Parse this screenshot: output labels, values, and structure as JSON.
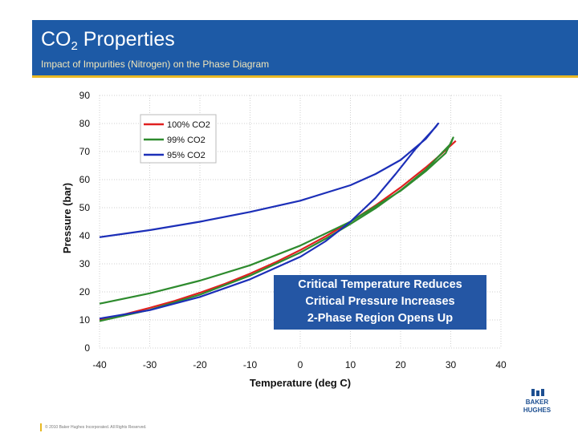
{
  "header": {
    "title_main": "CO",
    "title_sub": "2",
    "title_rest": " Properties",
    "subtitle": "Impact of Impurities (Nitrogen) on the Phase Diagram"
  },
  "chart_data": {
    "type": "line",
    "title": "",
    "xlabel": "Temperature (deg C)",
    "ylabel": "Pressure (bar)",
    "xlim": [
      -40,
      40
    ],
    "ylim": [
      0,
      90
    ],
    "xticks": [
      "-40",
      "-30",
      "-20",
      "-10",
      "0",
      "10",
      "20",
      "30",
      "40"
    ],
    "yticks": [
      "0",
      "10",
      "20",
      "30",
      "40",
      "50",
      "60",
      "70",
      "80",
      "90"
    ],
    "grid": true,
    "legend_position": "top-left",
    "series": [
      {
        "name": "100% CO2",
        "color": "#e02020",
        "points": [
          [
            -40,
            10.1
          ],
          [
            -35,
            12.0
          ],
          [
            -30,
            14.3
          ],
          [
            -25,
            16.8
          ],
          [
            -20,
            19.7
          ],
          [
            -15,
            22.9
          ],
          [
            -10,
            26.5
          ],
          [
            -5,
            30.5
          ],
          [
            0,
            34.9
          ],
          [
            5,
            39.7
          ],
          [
            10,
            45.0
          ],
          [
            15,
            50.8
          ],
          [
            20,
            57.2
          ],
          [
            25,
            64.3
          ],
          [
            28,
            68.9
          ],
          [
            31,
            73.8
          ]
        ]
      },
      {
        "name": "99% CO2",
        "color": "#2e8b2e",
        "upper": [
          [
            -40,
            15.8
          ],
          [
            -30,
            19.5
          ],
          [
            -20,
            24.0
          ],
          [
            -10,
            29.5
          ],
          [
            0,
            36.5
          ],
          [
            10,
            45.0
          ],
          [
            20,
            56.0
          ],
          [
            25,
            63.0
          ],
          [
            29,
            69.5
          ],
          [
            30.5,
            75.0
          ]
        ],
        "lower": [
          [
            30.5,
            75.0
          ],
          [
            30,
            72.8
          ],
          [
            25,
            63.5
          ],
          [
            20,
            56.2
          ],
          [
            15,
            49.8
          ],
          [
            10,
            44.2
          ],
          [
            5,
            38.9
          ],
          [
            0,
            34.0
          ],
          [
            -10,
            25.8
          ],
          [
            -20,
            19.0
          ],
          [
            -30,
            13.6
          ],
          [
            -40,
            9.6
          ]
        ]
      },
      {
        "name": "95% CO2",
        "color": "#1c2fb8",
        "upper": [
          [
            -40,
            39.5
          ],
          [
            -30,
            42.0
          ],
          [
            -20,
            45.0
          ],
          [
            -10,
            48.5
          ],
          [
            0,
            52.5
          ],
          [
            10,
            58.0
          ],
          [
            15,
            62.0
          ],
          [
            20,
            67.0
          ],
          [
            25,
            74.5
          ],
          [
            27.5,
            80.0
          ]
        ],
        "lower": [
          [
            27.5,
            80.0
          ],
          [
            27,
            78.8
          ],
          [
            23,
            71.0
          ],
          [
            19,
            62.0
          ],
          [
            15,
            53.5
          ],
          [
            10,
            45.0
          ],
          [
            5,
            38.0
          ],
          [
            0,
            32.5
          ],
          [
            -10,
            24.5
          ],
          [
            -20,
            18.2
          ],
          [
            -30,
            13.5
          ],
          [
            -40,
            10.5
          ]
        ]
      }
    ]
  },
  "callout": {
    "line1": "Critical Temperature Reduces",
    "line2": "Critical Pressure Increases",
    "line3": "2-Phase Region Opens Up"
  },
  "logo": {
    "line1": "BAKER",
    "line2": "HUGHES",
    "color": "#1d4f91"
  },
  "footer": {
    "text": "© 2010 Baker Hughes Incorporated. All Rights Reserved."
  }
}
